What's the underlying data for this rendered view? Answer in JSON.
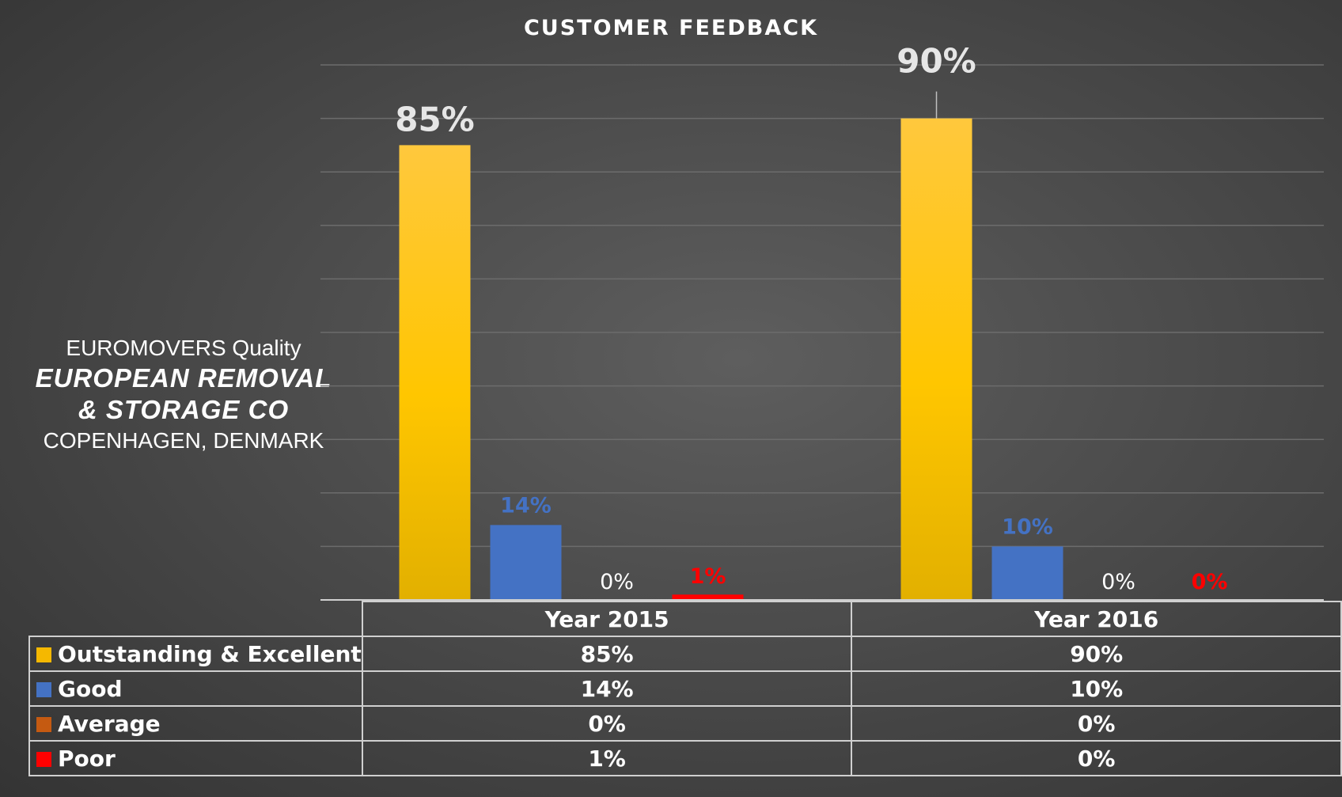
{
  "company": {
    "line1": "EUROMOVERS Quality",
    "name": "EUROPEAN REMOVAL\n& STORAGE CO",
    "location": "COPENHAGEN, DENMARK"
  },
  "chart_data": {
    "type": "bar",
    "title": "CUSTOMER FEEDBACK",
    "categories": [
      "Year 2015",
      "Year 2016"
    ],
    "series": [
      {
        "name": "Outstanding & Excellent",
        "values": [
          85,
          90
        ],
        "labels": [
          "85%",
          "90%"
        ],
        "color": "#f5b800"
      },
      {
        "name": "Good",
        "values": [
          14,
          10
        ],
        "labels": [
          "14%",
          "10%"
        ],
        "color": "#4472c4"
      },
      {
        "name": "Average",
        "values": [
          0,
          0
        ],
        "labels": [
          "0%",
          "0%"
        ],
        "color": "#c55a11"
      },
      {
        "name": "Poor",
        "values": [
          1,
          0
        ],
        "labels": [
          "1%",
          "0%"
        ],
        "color": "#ff0000"
      }
    ],
    "ylim": [
      0,
      100
    ],
    "grid": true,
    "legend": "data-table",
    "xlabel": "",
    "ylabel": ""
  }
}
